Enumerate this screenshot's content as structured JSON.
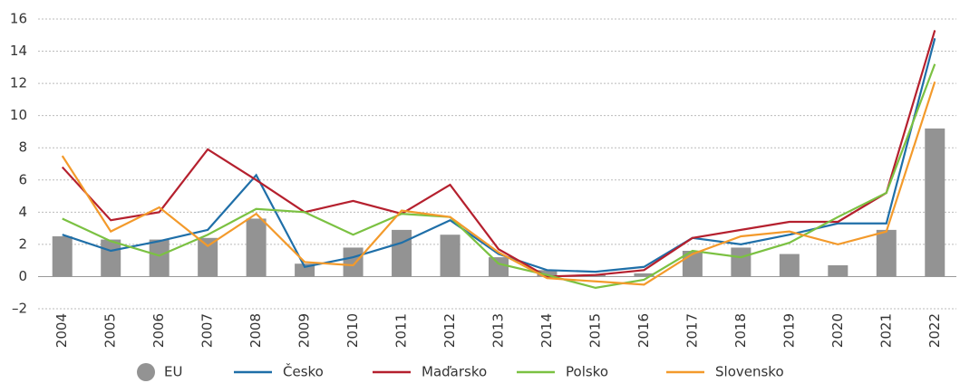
{
  "chart_data": {
    "type": "bar",
    "categories": [
      "2004",
      "2005",
      "2006",
      "2007",
      "2008",
      "2009",
      "2010",
      "2011",
      "2012",
      "2013",
      "2014",
      "2015",
      "2016",
      "2017",
      "2018",
      "2019",
      "2020",
      "2021",
      "2022"
    ],
    "series": [
      {
        "name": "EU",
        "type": "bar",
        "color": "#939393",
        "values": [
          2.5,
          2.3,
          2.3,
          2.4,
          3.6,
          0.8,
          1.8,
          2.9,
          2.6,
          1.2,
          0.4,
          0.1,
          0.2,
          1.6,
          1.8,
          1.4,
          0.7,
          2.9,
          9.2
        ]
      },
      {
        "name": "Česko",
        "type": "line",
        "color": "#1f6fa8",
        "values": [
          2.6,
          1.6,
          2.2,
          2.9,
          6.3,
          0.6,
          1.2,
          2.1,
          3.5,
          1.4,
          0.4,
          0.3,
          0.6,
          2.4,
          2.0,
          2.6,
          3.3,
          3.3,
          14.8
        ]
      },
      {
        "name": "Maďarsko",
        "type": "line",
        "color": "#b5202e",
        "values": [
          6.8,
          3.5,
          4.0,
          7.9,
          6.0,
          4.0,
          4.7,
          3.9,
          5.7,
          1.7,
          0.0,
          0.1,
          0.4,
          2.4,
          2.9,
          3.4,
          3.4,
          5.2,
          15.3
        ]
      },
      {
        "name": "Polsko",
        "type": "line",
        "color": "#7bc142",
        "values": [
          3.6,
          2.2,
          1.3,
          2.6,
          4.2,
          4.0,
          2.6,
          3.9,
          3.7,
          0.8,
          0.1,
          -0.7,
          -0.2,
          1.6,
          1.2,
          2.1,
          3.7,
          5.2,
          13.2
        ]
      },
      {
        "name": "Slovensko",
        "type": "line",
        "color": "#f39a2b",
        "values": [
          7.5,
          2.8,
          4.3,
          1.9,
          3.9,
          0.9,
          0.7,
          4.1,
          3.7,
          1.5,
          -0.1,
          -0.3,
          -0.5,
          1.4,
          2.5,
          2.8,
          2.0,
          2.8,
          12.1
        ]
      }
    ],
    "ylim": [
      -2,
      16
    ],
    "yticks": [
      {
        "value": -2,
        "label": "–2"
      },
      0,
      2,
      4,
      6,
      8,
      10,
      12,
      14,
      16
    ],
    "grid": true,
    "legend": "bottom"
  }
}
